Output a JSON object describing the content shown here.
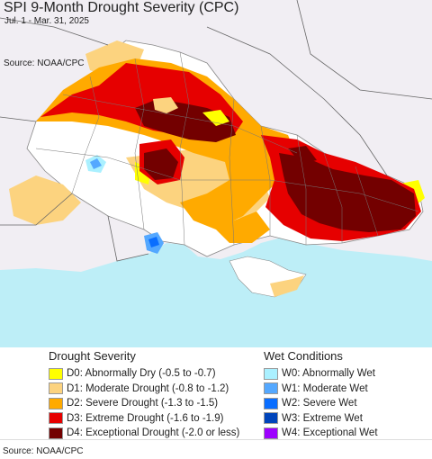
{
  "title": "SPI 9-Month Drought Severity (CPC)",
  "date_range": "Jul. 1 - Mar. 31, 2025",
  "source_top": "Source: NOAA/CPC",
  "source_bottom": "Source: NOAA/CPC",
  "colors": {
    "background_land": "#f1eef3",
    "sea": "#bdeef7",
    "border": "#888888",
    "D0": "#ffff00",
    "D1": "#fcd37f",
    "D2": "#ffaa00",
    "D3": "#e60000",
    "D4": "#730000",
    "W0": "#aaf0ff",
    "W1": "#54a8ff",
    "W2": "#0a6eff",
    "W3": "#0044bb",
    "W4": "#9d00ff"
  },
  "drought_legend": {
    "heading": "Drought Severity",
    "items": [
      {
        "code": "D0",
        "label": "D0: Abnormally Dry (-0.5 to -0.7)"
      },
      {
        "code": "D1",
        "label": "D1: Moderate Drought (-0.8 to -1.2)"
      },
      {
        "code": "D2",
        "label": "D2: Severe Drought (-1.3 to -1.5)"
      },
      {
        "code": "D3",
        "label": "D3: Extreme Drought (-1.6 to -1.9)"
      },
      {
        "code": "D4",
        "label": "D4: Exceptional Drought (-2.0 or less)"
      }
    ]
  },
  "wet_legend": {
    "heading": "Wet Conditions",
    "items": [
      {
        "code": "W0",
        "label": "W0: Abnormally Wet"
      },
      {
        "code": "W1",
        "label": "W1: Moderate Wet"
      },
      {
        "code": "W2",
        "label": "W2: Severe Wet"
      },
      {
        "code": "W3",
        "label": "W3: Extreme Wet"
      },
      {
        "code": "W4",
        "label": "W4: Exceptional Wet"
      }
    ]
  }
}
